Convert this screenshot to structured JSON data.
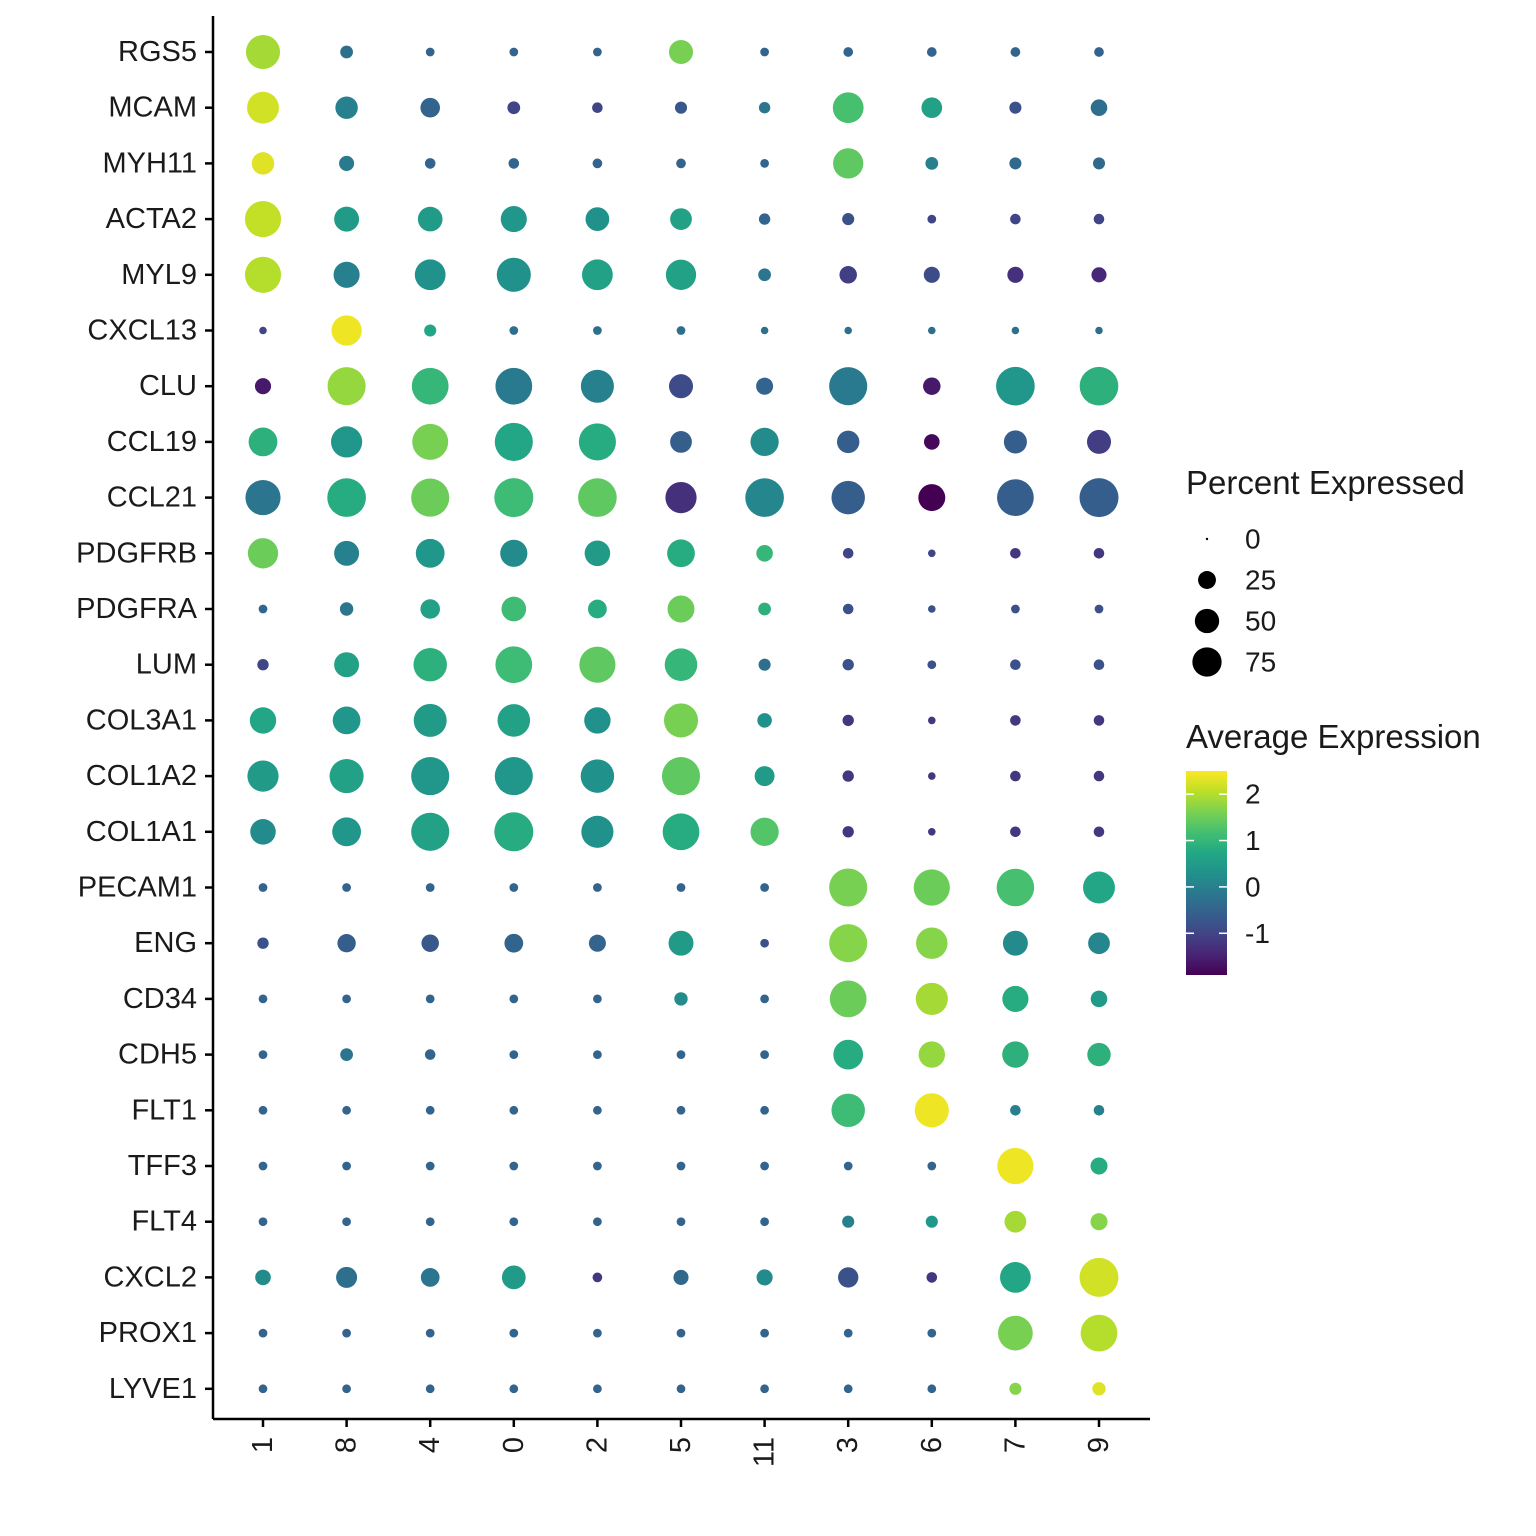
{
  "chart_data": {
    "type": "dotplot",
    "genes": [
      "RGS5",
      "MCAM",
      "MYH11",
      "ACTA2",
      "MYL9",
      "CXCL13",
      "CLU",
      "CCL19",
      "CCL21",
      "PDGFRB",
      "PDGFRA",
      "LUM",
      "COL3A1",
      "COL1A2",
      "COL1A1",
      "PECAM1",
      "ENG",
      "CD34",
      "CDH5",
      "FLT1",
      "TFF3",
      "FLT4",
      "CXCL2",
      "PROX1",
      "LYVE1"
    ],
    "clusters": [
      "1",
      "8",
      "4",
      "0",
      "2",
      "5",
      "11",
      "3",
      "6",
      "7",
      "9"
    ],
    "percent_expressed": [
      [
        75,
        8,
        3,
        3,
        3,
        35,
        3,
        4,
        4,
        4,
        4
      ],
      [
        65,
        30,
        22,
        8,
        5,
        7,
        6,
        60,
        25,
        7,
        15
      ],
      [
        30,
        12,
        5,
        5,
        4,
        4,
        3,
        58,
        8,
        7,
        7
      ],
      [
        85,
        38,
        37,
        42,
        34,
        28,
        6,
        7,
        3,
        5,
        5
      ],
      [
        85,
        42,
        60,
        75,
        60,
        58,
        8,
        17,
        14,
        14,
        12
      ],
      [
        2,
        58,
        7,
        3,
        3,
        3,
        2,
        2,
        2,
        2,
        2
      ],
      [
        14,
        95,
        88,
        88,
        70,
        35,
        16,
        95,
        17,
        98,
        98
      ],
      [
        52,
        62,
        84,
        95,
        90,
        28,
        50,
        30,
        13,
        32,
        35
      ],
      [
        80,
        98,
        95,
        100,
        98,
        62,
        98,
        72,
        45,
        88,
        100
      ],
      [
        58,
        38,
        52,
        46,
        40,
        48,
        15,
        5,
        2,
        5,
        5
      ],
      [
        3,
        9,
        22,
        37,
        20,
        45,
        8,
        5,
        2,
        3,
        3
      ],
      [
        6,
        38,
        72,
        88,
        85,
        68,
        7,
        6,
        3,
        5,
        5
      ],
      [
        43,
        48,
        70,
        68,
        43,
        75,
        11,
        6,
        2,
        5,
        5
      ],
      [
        62,
        75,
        95,
        95,
        72,
        95,
        23,
        6,
        2,
        5,
        5
      ],
      [
        40,
        52,
        95,
        100,
        66,
        88,
        50,
        6,
        2,
        5,
        5
      ],
      [
        3,
        3,
        3,
        3,
        3,
        3,
        3,
        95,
        85,
        92,
        65
      ],
      [
        6,
        19,
        17,
        20,
        16,
        38,
        3,
        95,
        63,
        38,
        28
      ],
      [
        3,
        3,
        3,
        3,
        3,
        9,
        3,
        88,
        66,
        42,
        15
      ],
      [
        3,
        8,
        5,
        3,
        3,
        3,
        3,
        56,
        43,
        43,
        33
      ],
      [
        3,
        3,
        3,
        3,
        3,
        3,
        3,
        72,
        75,
        5,
        5
      ],
      [
        3,
        3,
        3,
        3,
        3,
        3,
        3,
        3,
        3,
        85,
        16
      ],
      [
        3,
        3,
        3,
        3,
        3,
        3,
        3,
        7,
        7,
        28,
        16
      ],
      [
        13,
        26,
        20,
        34,
        4,
        12,
        14,
        24,
        5,
        60,
        100
      ],
      [
        3,
        3,
        3,
        3,
        3,
        3,
        3,
        3,
        3,
        78,
        88
      ],
      [
        3,
        3,
        3,
        3,
        3,
        3,
        3,
        3,
        3,
        7,
        9
      ]
    ],
    "average_expression": [
      [
        1.9,
        -0.3,
        -0.5,
        -0.5,
        -0.5,
        1.6,
        -0.5,
        -0.5,
        -0.5,
        -0.5,
        -0.5
      ],
      [
        2.2,
        0.0,
        -0.5,
        -1.0,
        -1.0,
        -0.7,
        -0.2,
        1.2,
        0.6,
        -0.8,
        -0.3
      ],
      [
        2.3,
        -0.1,
        -0.5,
        -0.5,
        -0.5,
        -0.5,
        -0.5,
        1.4,
        0.0,
        -0.4,
        -0.4
      ],
      [
        2.1,
        0.5,
        0.5,
        0.4,
        0.3,
        0.6,
        -0.5,
        -0.8,
        -1.0,
        -1.0,
        -1.0
      ],
      [
        2.0,
        0.0,
        0.3,
        0.3,
        0.6,
        0.6,
        -0.2,
        -1.1,
        -0.9,
        -1.3,
        -1.4
      ],
      [
        -1.0,
        2.4,
        0.7,
        -0.3,
        -0.3,
        -0.3,
        -0.3,
        -0.3,
        -0.3,
        -0.3,
        -0.3
      ],
      [
        -1.6,
        1.8,
        1.0,
        -0.1,
        0.0,
        -0.9,
        -0.5,
        -0.1,
        -1.6,
        0.4,
        0.9
      ],
      [
        0.9,
        0.4,
        1.6,
        0.7,
        0.8,
        -0.6,
        0.2,
        -0.6,
        -1.8,
        -0.6,
        -1.1
      ],
      [
        -0.2,
        0.8,
        1.5,
        1.1,
        1.4,
        -1.3,
        0.1,
        -0.6,
        -1.9,
        -0.6,
        -0.6
      ],
      [
        1.5,
        0.0,
        0.4,
        0.2,
        0.5,
        0.8,
        1.0,
        -1.0,
        -1.0,
        -1.2,
        -1.2
      ],
      [
        -0.5,
        -0.2,
        0.6,
        1.1,
        0.8,
        1.5,
        0.9,
        -0.8,
        -0.8,
        -0.8,
        -0.8
      ],
      [
        -1.0,
        0.6,
        0.9,
        1.1,
        1.4,
        1.0,
        -0.3,
        -0.8,
        -0.8,
        -0.8,
        -0.8
      ],
      [
        0.7,
        0.4,
        0.5,
        0.6,
        0.3,
        1.6,
        0.3,
        -1.2,
        -1.2,
        -1.2,
        -1.2
      ],
      [
        0.5,
        0.6,
        0.4,
        0.4,
        0.3,
        1.4,
        0.5,
        -1.2,
        -1.2,
        -1.2,
        -1.2
      ],
      [
        0.2,
        0.4,
        0.6,
        0.8,
        0.3,
        0.8,
        1.3,
        -1.2,
        -1.2,
        -1.2,
        -1.2
      ],
      [
        -0.5,
        -0.5,
        -0.5,
        -0.5,
        -0.5,
        -0.5,
        -0.5,
        1.6,
        1.5,
        1.2,
        0.7
      ],
      [
        -0.8,
        -0.6,
        -0.7,
        -0.5,
        -0.5,
        0.5,
        -0.8,
        1.7,
        1.7,
        0.2,
        0.1
      ],
      [
        -0.5,
        -0.5,
        -0.5,
        -0.5,
        -0.5,
        0.2,
        -0.5,
        1.5,
        1.9,
        0.8,
        0.5
      ],
      [
        -0.5,
        -0.2,
        -0.5,
        -0.5,
        -0.5,
        -0.5,
        -0.5,
        0.8,
        1.8,
        0.9,
        0.9
      ],
      [
        -0.5,
        -0.5,
        -0.5,
        -0.5,
        -0.5,
        -0.5,
        -0.5,
        1.1,
        2.4,
        0.0,
        0.0
      ],
      [
        -0.5,
        -0.5,
        -0.5,
        -0.5,
        -0.5,
        -0.5,
        -0.5,
        -0.5,
        -0.5,
        2.4,
        0.8
      ],
      [
        -0.5,
        -0.5,
        -0.5,
        -0.5,
        -0.5,
        -0.5,
        -0.5,
        0.0,
        0.4,
        1.9,
        1.7
      ],
      [
        0.2,
        -0.3,
        -0.2,
        0.5,
        -1.2,
        -0.4,
        0.2,
        -0.8,
        -1.2,
        0.7,
        2.2
      ],
      [
        -0.5,
        -0.5,
        -0.5,
        -0.5,
        -0.5,
        -0.5,
        -0.5,
        -0.5,
        -0.5,
        1.6,
        2.0
      ],
      [
        -0.5,
        -0.5,
        -0.5,
        -0.5,
        -0.5,
        -0.5,
        -0.5,
        -0.5,
        -0.5,
        1.7,
        2.3
      ]
    ],
    "size_legend": {
      "title": "Percent Expressed",
      "values": [
        0,
        25,
        50,
        75
      ],
      "labels": [
        "0",
        "25",
        "50",
        "75"
      ]
    },
    "color_legend": {
      "title": "Average Expression",
      "colormap": "viridis",
      "range": [
        -1.9,
        2.5
      ],
      "ticks": [
        -1,
        0,
        1,
        2
      ],
      "labels": [
        "-1",
        "0",
        "1",
        "2"
      ]
    },
    "percent_range": [
      0,
      100
    ],
    "legend_position": "right",
    "grid": false
  }
}
